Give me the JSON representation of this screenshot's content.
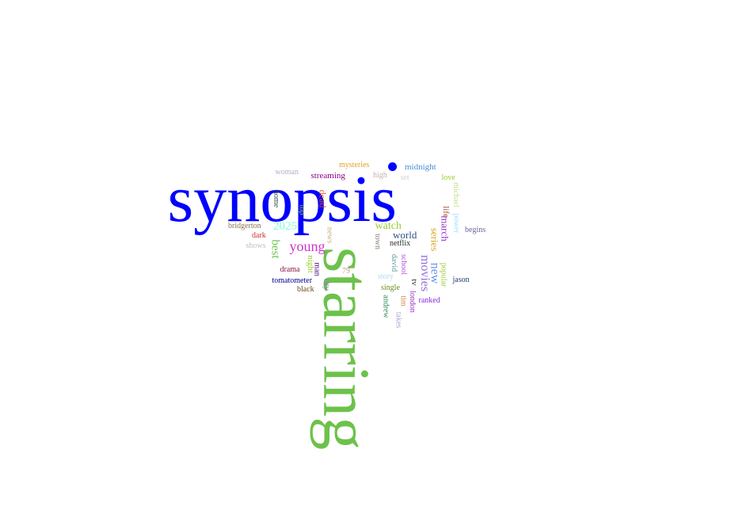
{
  "words": [
    {
      "text": "synopsis",
      "color": "#0000ff"
    },
    {
      "text": "starring",
      "color": "#6cc24a"
    },
    {
      "text": "young",
      "color": "#cc33cc"
    },
    {
      "text": "2025",
      "color": "#7fffd4"
    },
    {
      "text": "best",
      "color": "#6cc24a"
    },
    {
      "text": "movies",
      "color": "#9370db"
    },
    {
      "text": "new",
      "color": "#6495ed"
    },
    {
      "text": "series",
      "color": "#daa520"
    },
    {
      "text": "watch",
      "color": "#9acd32"
    },
    {
      "text": "world",
      "color": "#2f4f7f"
    },
    {
      "text": "march",
      "color": "#9932cc"
    },
    {
      "text": "life",
      "color": "#a0522d"
    },
    {
      "text": "tv",
      "color": "#333333"
    },
    {
      "text": "midnight",
      "color": "#4a90d9"
    },
    {
      "text": "mysteries",
      "color": "#daa520"
    },
    {
      "text": "streaming",
      "color": "#8b008b"
    },
    {
      "text": "woman",
      "color": "#b0b0c8"
    },
    {
      "text": "high",
      "color": "#c8b0b0"
    },
    {
      "text": "set",
      "color": "#d0d0d0"
    },
    {
      "text": "love",
      "color": "#9acd32"
    },
    {
      "text": "michael",
      "color": "#c8e08c"
    },
    {
      "text": "power",
      "color": "#a0e0ff"
    },
    {
      "text": "begins",
      "color": "#666699"
    },
    {
      "text": "home",
      "color": "#2f4f4f"
    },
    {
      "text": "dead",
      "color": "#e05020"
    },
    {
      "text": "top",
      "color": "#9acd32"
    },
    {
      "text": "news",
      "color": "#c8b080"
    },
    {
      "text": "bridgerton",
      "color": "#8b7355"
    },
    {
      "text": "dark",
      "color": "#cc3333"
    },
    {
      "text": "shows",
      "color": "#c0c0c0"
    },
    {
      "text": "night",
      "color": "#9acd32"
    },
    {
      "text": "drama",
      "color": "#8b1a4a"
    },
    {
      "text": "man",
      "color": "#4b0082"
    },
    {
      "text": "city",
      "color": "#9370db"
    },
    {
      "text": "79",
      "color": "#c8a080"
    },
    {
      "text": "tomatometer",
      "color": "#00008b"
    },
    {
      "text": "black",
      "color": "#6b4a1a"
    },
    {
      "text": "town",
      "color": "#8b7d6b"
    },
    {
      "text": "netflix",
      "color": "#2f2f2f"
    },
    {
      "text": "david",
      "color": "#5f9ea0"
    },
    {
      "text": "school",
      "color": "#ba55d3"
    },
    {
      "text": "story",
      "color": "#b0d8f0"
    },
    {
      "text": "single",
      "color": "#6b8e23"
    },
    {
      "text": "andrew",
      "color": "#2e8b57"
    },
    {
      "text": "tim",
      "color": "#cd853f"
    },
    {
      "text": "london",
      "color": "#9932cc"
    },
    {
      "text": "takes",
      "color": "#b0a0d0"
    },
    {
      "text": "popular",
      "color": "#9acd32"
    },
    {
      "text": "ranked",
      "color": "#8a2be2"
    },
    {
      "text": "jason",
      "color": "#1f3f6f"
    }
  ]
}
